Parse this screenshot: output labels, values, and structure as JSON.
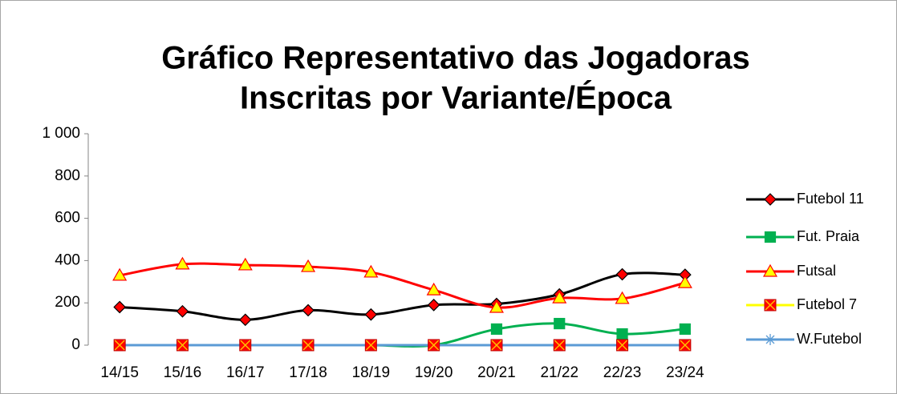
{
  "chart_data": {
    "type": "line",
    "title": [
      "Gráfico Representativo das Jogadoras",
      "Inscritas por Variante/Época"
    ],
    "categories": [
      "14/15",
      "15/16",
      "16/17",
      "17/18",
      "18/19",
      "19/20",
      "20/21",
      "21/22",
      "22/23",
      "23/24"
    ],
    "series": [
      {
        "name": "Futebol 11",
        "color": "#000000",
        "marker": "diamond",
        "marker_fill": "#ff0000",
        "marker_edge": "#000000",
        "values": [
          180,
          160,
          120,
          165,
          145,
          190,
          195,
          240,
          335,
          333
        ]
      },
      {
        "name": "Fut. Praia",
        "color": "#00b050",
        "marker": "square",
        "marker_fill": "#00b050",
        "marker_edge": "#00b050",
        "values": [
          0,
          0,
          0,
          0,
          0,
          0,
          76,
          102,
          53,
          76
        ]
      },
      {
        "name": "Futsal",
        "color": "#ff0000",
        "marker": "triangle",
        "marker_fill": "#ffff00",
        "marker_edge": "#ff0000",
        "values": [
          330,
          383,
          379,
          371,
          345,
          261,
          178,
          223,
          220,
          295
        ]
      },
      {
        "name": "Futebol 7",
        "color": "#ffff00",
        "marker": "xsquare",
        "marker_fill": "#ff0000",
        "marker_edge": "#c00000",
        "values": [
          0,
          0,
          0,
          0,
          0,
          0,
          0,
          0,
          0,
          0
        ]
      },
      {
        "name": "W.Futebol",
        "color": "#5b9bd5",
        "marker": "star",
        "marker_fill": "#5b9bd5",
        "marker_edge": "#5b9bd5",
        "values": [
          0,
          0,
          0,
          0,
          0,
          0,
          0,
          0,
          0,
          0
        ]
      }
    ],
    "ylim": [
      0,
      1000
    ],
    "yticks": [
      0,
      200,
      400,
      600,
      800,
      {
        "value": 1000,
        "label": "1 000"
      }
    ],
    "smooth": true,
    "grid": false,
    "legend": "right"
  }
}
